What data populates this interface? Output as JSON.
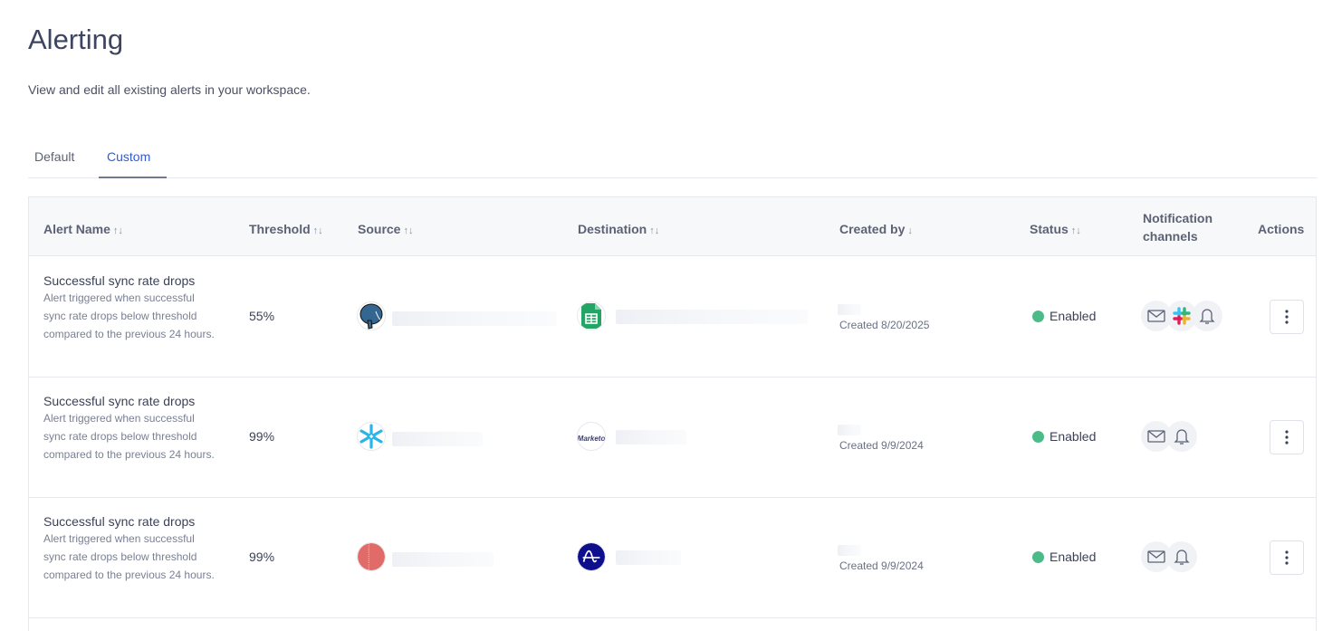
{
  "page": {
    "title": "Alerting",
    "subtitle": "View and edit all existing alerts in your workspace."
  },
  "tabs": [
    {
      "label": "Default",
      "active": false
    },
    {
      "label": "Custom",
      "active": true
    }
  ],
  "columns": {
    "alert_name": "Alert Name",
    "threshold": "Threshold",
    "source": "Source",
    "destination": "Destination",
    "created_by": "Created by",
    "status": "Status",
    "notification": "Notification channels",
    "actions": "Actions"
  },
  "rows": [
    {
      "name": "Successful sync rate drops",
      "description": "Alert triggered when successful sync rate drops below threshold compared to the previous 24 hours.",
      "threshold": "55%",
      "source_icon": "postgresql",
      "destination_icon": "google-sheets",
      "created": "Created 8/20/2025",
      "status": "Enabled",
      "channels": [
        "email",
        "slack",
        "bell"
      ]
    },
    {
      "name": "Successful sync rate drops",
      "description": "Alert triggered when successful sync rate drops below threshold compared to the previous 24 hours.",
      "threshold": "99%",
      "source_icon": "snowflake",
      "destination_icon": "marketo",
      "destination_logo_text": "Marketo",
      "created": "Created 9/9/2024",
      "status": "Enabled",
      "channels": [
        "email",
        "bell"
      ]
    },
    {
      "name": "Successful sync rate drops",
      "description": "Alert triggered when successful sync rate drops below threshold compared to the previous 24 hours.",
      "threshold": "99%",
      "source_icon": "redshift",
      "destination_icon": "amplitude",
      "created": "Created 9/9/2024",
      "status": "Enabled",
      "channels": [
        "email",
        "bell"
      ]
    }
  ],
  "colors": {
    "accent": "#2f5bd8",
    "enabled": "#4cbb8a"
  }
}
